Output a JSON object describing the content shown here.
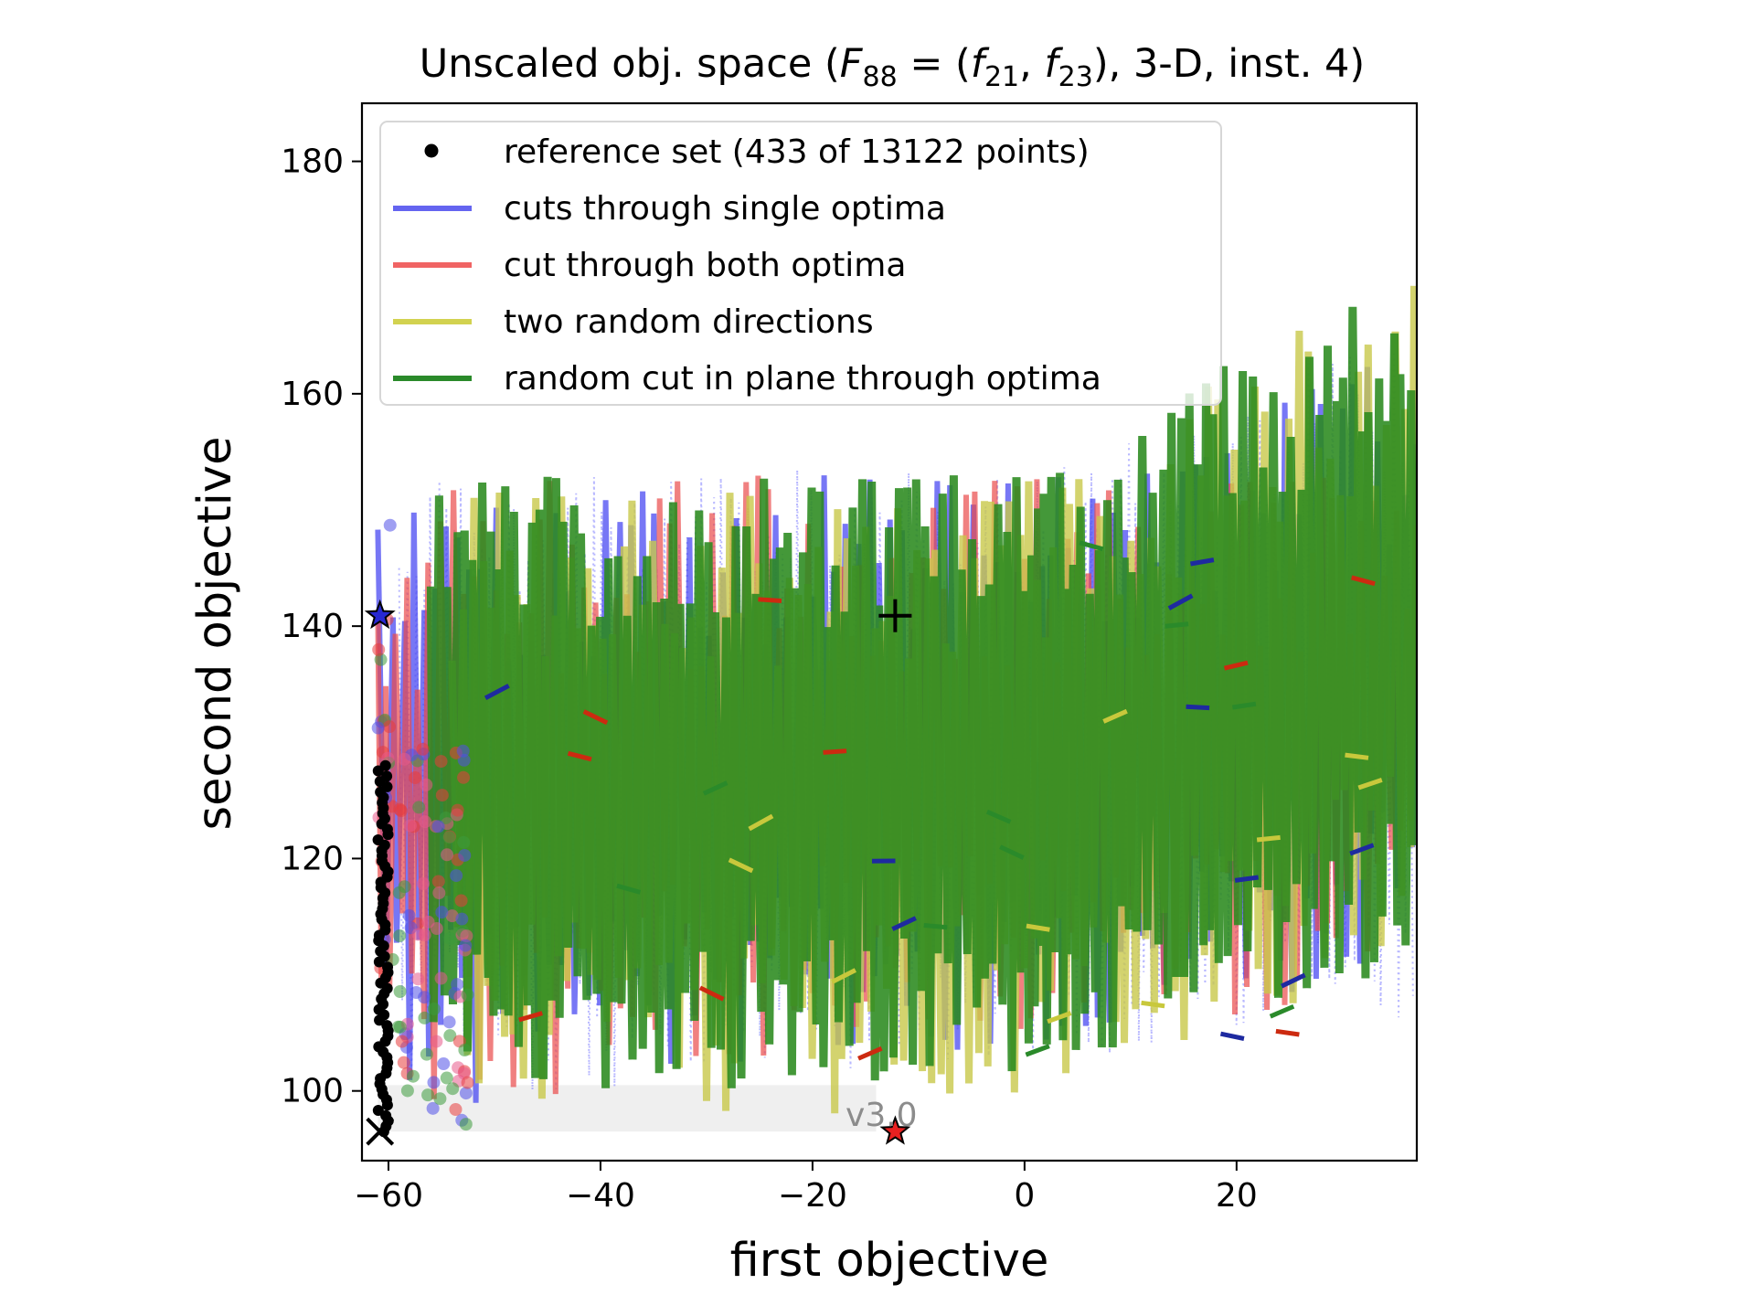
{
  "chart_data": {
    "type": "line",
    "title": "Unscaled obj. space (F88 = (f21, f23), 3-D, inst. 4)",
    "title_parts": {
      "prefix": "Unscaled obj. space (",
      "F": "F",
      "F_sub": "88",
      "eq": " = (",
      "f1": "f",
      "f1_sub": "21",
      "comma": ", ",
      "f2": "f",
      "f2_sub": "23",
      "suffix": "), 3-D, inst. 4)"
    },
    "xlabel": "first objective",
    "ylabel": "second objective",
    "xlim": [
      -62.5,
      37
    ],
    "ylim": [
      94,
      185
    ],
    "xticks": [
      -60,
      -40,
      -20,
      0,
      20
    ],
    "xtick_labels": [
      "−60",
      "−40",
      "−20",
      "0",
      "20"
    ],
    "yticks": [
      100,
      120,
      140,
      160,
      180
    ],
    "ytick_labels": [
      "100",
      "120",
      "140",
      "160",
      "180"
    ],
    "grid": false,
    "legend_position": "top-left",
    "legend": [
      {
        "label": "reference set (433 of 13122 points)",
        "marker": "dot",
        "color": "#000000"
      },
      {
        "label": "cuts through single optima",
        "marker": "line",
        "color": "#6464f0"
      },
      {
        "label": "cut through both optima",
        "marker": "line",
        "color": "#f06464"
      },
      {
        "label": "two random directions",
        "marker": "line",
        "color": "#d2d250"
      },
      {
        "label": "random cut in plane through optima",
        "marker": "line",
        "color": "#2a8a2a"
      }
    ],
    "series": [
      {
        "name": "cuts through single optima",
        "color": "#4a4af2",
        "x_range": [
          -61,
          37
        ],
        "y_range": [
          97,
          168
        ]
      },
      {
        "name": "cut through both optima",
        "color": "#ea4a4a",
        "x_range": [
          -61,
          37
        ],
        "y_range": [
          97,
          155
        ]
      },
      {
        "name": "two random directions",
        "color": "#c8c84a",
        "x_range": [
          -54,
          37
        ],
        "y_range": [
          97,
          172
        ]
      },
      {
        "name": "random cut in plane through optima",
        "color": "#2a8a1e",
        "x_range": [
          -56,
          37
        ],
        "y_range": [
          99,
          171
        ]
      }
    ],
    "reference_set": {
      "x_range": [
        -61,
        -60
      ],
      "y_range": [
        96.5,
        128
      ]
    },
    "annotations": [
      {
        "type": "star",
        "x": -60.8,
        "y": 140.9,
        "color": "#2828d2"
      },
      {
        "type": "star",
        "x": -12.2,
        "y": 96.5,
        "color": "#e82020"
      },
      {
        "type": "x-marker",
        "x": -60.8,
        "y": 96.5,
        "color": "#000000"
      },
      {
        "type": "plus-marker",
        "x": -12.2,
        "y": 140.9,
        "color": "#000000"
      },
      {
        "type": "text",
        "x": -13.5,
        "y": 97,
        "text": "v3.0",
        "color": "#8c8c8c"
      }
    ]
  }
}
